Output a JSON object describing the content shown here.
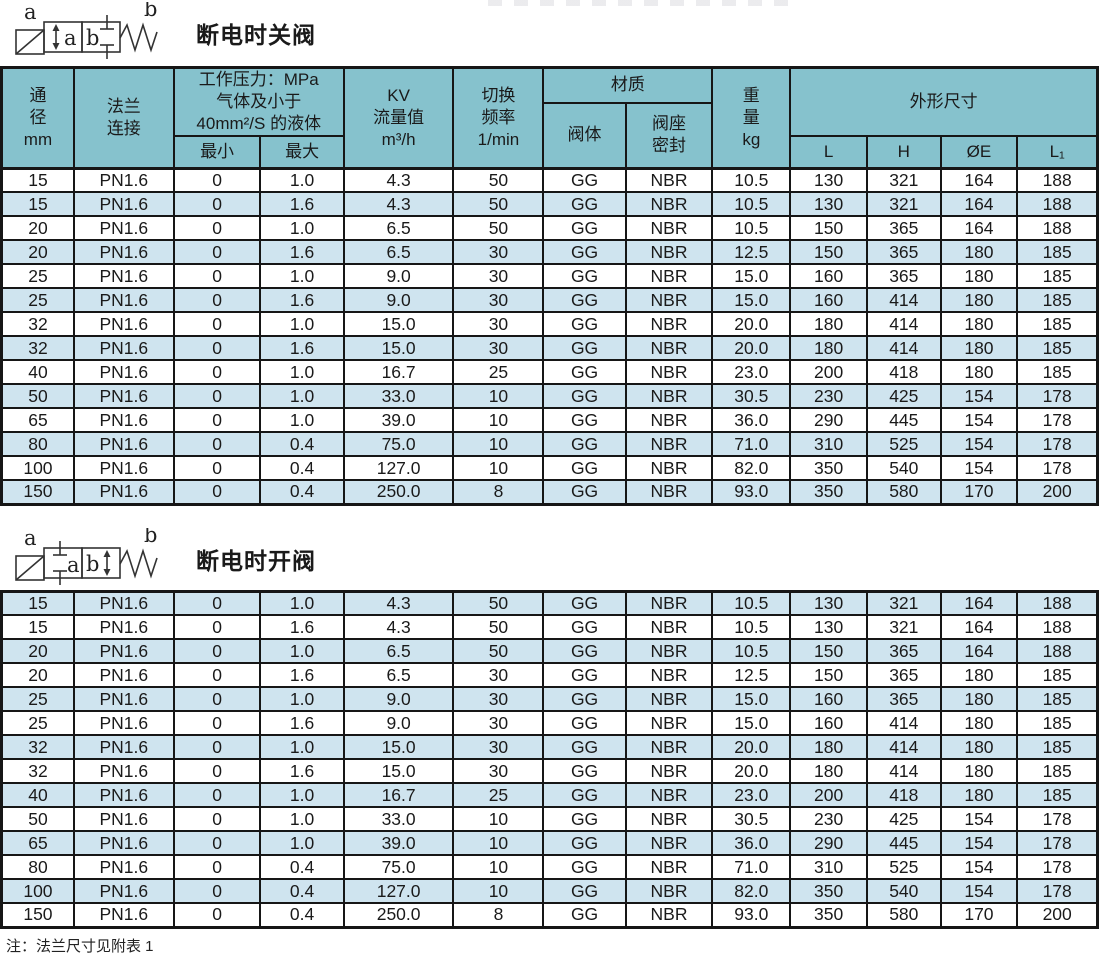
{
  "colors": {
    "header_bg": "#86c2cd",
    "alt_row_bg": "#cfe4ef",
    "border": "#161616",
    "text": "#1a1a1a"
  },
  "section_closed": {
    "title": "断电时关阀",
    "symbol": {
      "coil_label": "a",
      "spring_label": "b",
      "box_a_label": "a",
      "box_b_label": "b"
    }
  },
  "section_open": {
    "title": "断电时开阀",
    "symbol": {
      "coil_label": "a",
      "spring_label": "b",
      "box_a_label": "a",
      "box_b_label": "b"
    }
  },
  "table_header": {
    "dn": "通\n径\nmm",
    "flange": "法兰\n连接",
    "pressure_group": "工作压力：MPa\n气体及小于\n40mm²/S 的液体",
    "pressure_min": "最小",
    "pressure_max": "最大",
    "kv": "KV\n流量值\nm³/h",
    "freq": "切换\n频率\n1/min",
    "material_group": "材质",
    "material_body": "阀体",
    "material_seat": "阀座\n密封",
    "weight": "重\n量\nkg",
    "dims_group": "外形尺寸",
    "dim_l": "L",
    "dim_h": "H",
    "dim_oe": "ØE",
    "dim_l1": "L₁"
  },
  "table_closed": {
    "rows": [
      [
        "15",
        "PN1.6",
        "0",
        "1.0",
        "4.3",
        "50",
        "GG",
        "NBR",
        "10.5",
        "130",
        "321",
        "164",
        "188"
      ],
      [
        "15",
        "PN1.6",
        "0",
        "1.6",
        "4.3",
        "50",
        "GG",
        "NBR",
        "10.5",
        "130",
        "321",
        "164",
        "188"
      ],
      [
        "20",
        "PN1.6",
        "0",
        "1.0",
        "6.5",
        "50",
        "GG",
        "NBR",
        "10.5",
        "150",
        "365",
        "164",
        "188"
      ],
      [
        "20",
        "PN1.6",
        "0",
        "1.6",
        "6.5",
        "30",
        "GG",
        "NBR",
        "12.5",
        "150",
        "365",
        "180",
        "185"
      ],
      [
        "25",
        "PN1.6",
        "0",
        "1.0",
        "9.0",
        "30",
        "GG",
        "NBR",
        "15.0",
        "160",
        "365",
        "180",
        "185"
      ],
      [
        "25",
        "PN1.6",
        "0",
        "1.6",
        "9.0",
        "30",
        "GG",
        "NBR",
        "15.0",
        "160",
        "414",
        "180",
        "185"
      ],
      [
        "32",
        "PN1.6",
        "0",
        "1.0",
        "15.0",
        "30",
        "GG",
        "NBR",
        "20.0",
        "180",
        "414",
        "180",
        "185"
      ],
      [
        "32",
        "PN1.6",
        "0",
        "1.6",
        "15.0",
        "30",
        "GG",
        "NBR",
        "20.0",
        "180",
        "414",
        "180",
        "185"
      ],
      [
        "40",
        "PN1.6",
        "0",
        "1.0",
        "16.7",
        "25",
        "GG",
        "NBR",
        "23.0",
        "200",
        "418",
        "180",
        "185"
      ],
      [
        "50",
        "PN1.6",
        "0",
        "1.0",
        "33.0",
        "10",
        "GG",
        "NBR",
        "30.5",
        "230",
        "425",
        "154",
        "178"
      ],
      [
        "65",
        "PN1.6",
        "0",
        "1.0",
        "39.0",
        "10",
        "GG",
        "NBR",
        "36.0",
        "290",
        "445",
        "154",
        "178"
      ],
      [
        "80",
        "PN1.6",
        "0",
        "0.4",
        "75.0",
        "10",
        "GG",
        "NBR",
        "71.0",
        "310",
        "525",
        "154",
        "178"
      ],
      [
        "100",
        "PN1.6",
        "0",
        "0.4",
        "127.0",
        "10",
        "GG",
        "NBR",
        "82.0",
        "350",
        "540",
        "154",
        "178"
      ],
      [
        "150",
        "PN1.6",
        "0",
        "0.4",
        "250.0",
        "8",
        "GG",
        "NBR",
        "93.0",
        "350",
        "580",
        "170",
        "200"
      ]
    ]
  },
  "table_open": {
    "rows": [
      [
        "15",
        "PN1.6",
        "0",
        "1.0",
        "4.3",
        "50",
        "GG",
        "NBR",
        "10.5",
        "130",
        "321",
        "164",
        "188"
      ],
      [
        "15",
        "PN1.6",
        "0",
        "1.6",
        "4.3",
        "50",
        "GG",
        "NBR",
        "10.5",
        "130",
        "321",
        "164",
        "188"
      ],
      [
        "20",
        "PN1.6",
        "0",
        "1.0",
        "6.5",
        "50",
        "GG",
        "NBR",
        "10.5",
        "150",
        "365",
        "164",
        "188"
      ],
      [
        "20",
        "PN1.6",
        "0",
        "1.6",
        "6.5",
        "30",
        "GG",
        "NBR",
        "12.5",
        "150",
        "365",
        "180",
        "185"
      ],
      [
        "25",
        "PN1.6",
        "0",
        "1.0",
        "9.0",
        "30",
        "GG",
        "NBR",
        "15.0",
        "160",
        "365",
        "180",
        "185"
      ],
      [
        "25",
        "PN1.6",
        "0",
        "1.6",
        "9.0",
        "30",
        "GG",
        "NBR",
        "15.0",
        "160",
        "414",
        "180",
        "185"
      ],
      [
        "32",
        "PN1.6",
        "0",
        "1.0",
        "15.0",
        "30",
        "GG",
        "NBR",
        "20.0",
        "180",
        "414",
        "180",
        "185"
      ],
      [
        "32",
        "PN1.6",
        "0",
        "1.6",
        "15.0",
        "30",
        "GG",
        "NBR",
        "20.0",
        "180",
        "414",
        "180",
        "185"
      ],
      [
        "40",
        "PN1.6",
        "0",
        "1.0",
        "16.7",
        "25",
        "GG",
        "NBR",
        "23.0",
        "200",
        "418",
        "180",
        "185"
      ],
      [
        "50",
        "PN1.6",
        "0",
        "1.0",
        "33.0",
        "10",
        "GG",
        "NBR",
        "30.5",
        "230",
        "425",
        "154",
        "178"
      ],
      [
        "65",
        "PN1.6",
        "0",
        "1.0",
        "39.0",
        "10",
        "GG",
        "NBR",
        "36.0",
        "290",
        "445",
        "154",
        "178"
      ],
      [
        "80",
        "PN1.6",
        "0",
        "0.4",
        "75.0",
        "10",
        "GG",
        "NBR",
        "71.0",
        "310",
        "525",
        "154",
        "178"
      ],
      [
        "100",
        "PN1.6",
        "0",
        "0.4",
        "127.0",
        "10",
        "GG",
        "NBR",
        "82.0",
        "350",
        "540",
        "154",
        "178"
      ],
      [
        "150",
        "PN1.6",
        "0",
        "0.4",
        "250.0",
        "8",
        "GG",
        "NBR",
        "93.0",
        "350",
        "580",
        "170",
        "200"
      ]
    ]
  },
  "footnote": "注：法兰尺寸见附表 1"
}
